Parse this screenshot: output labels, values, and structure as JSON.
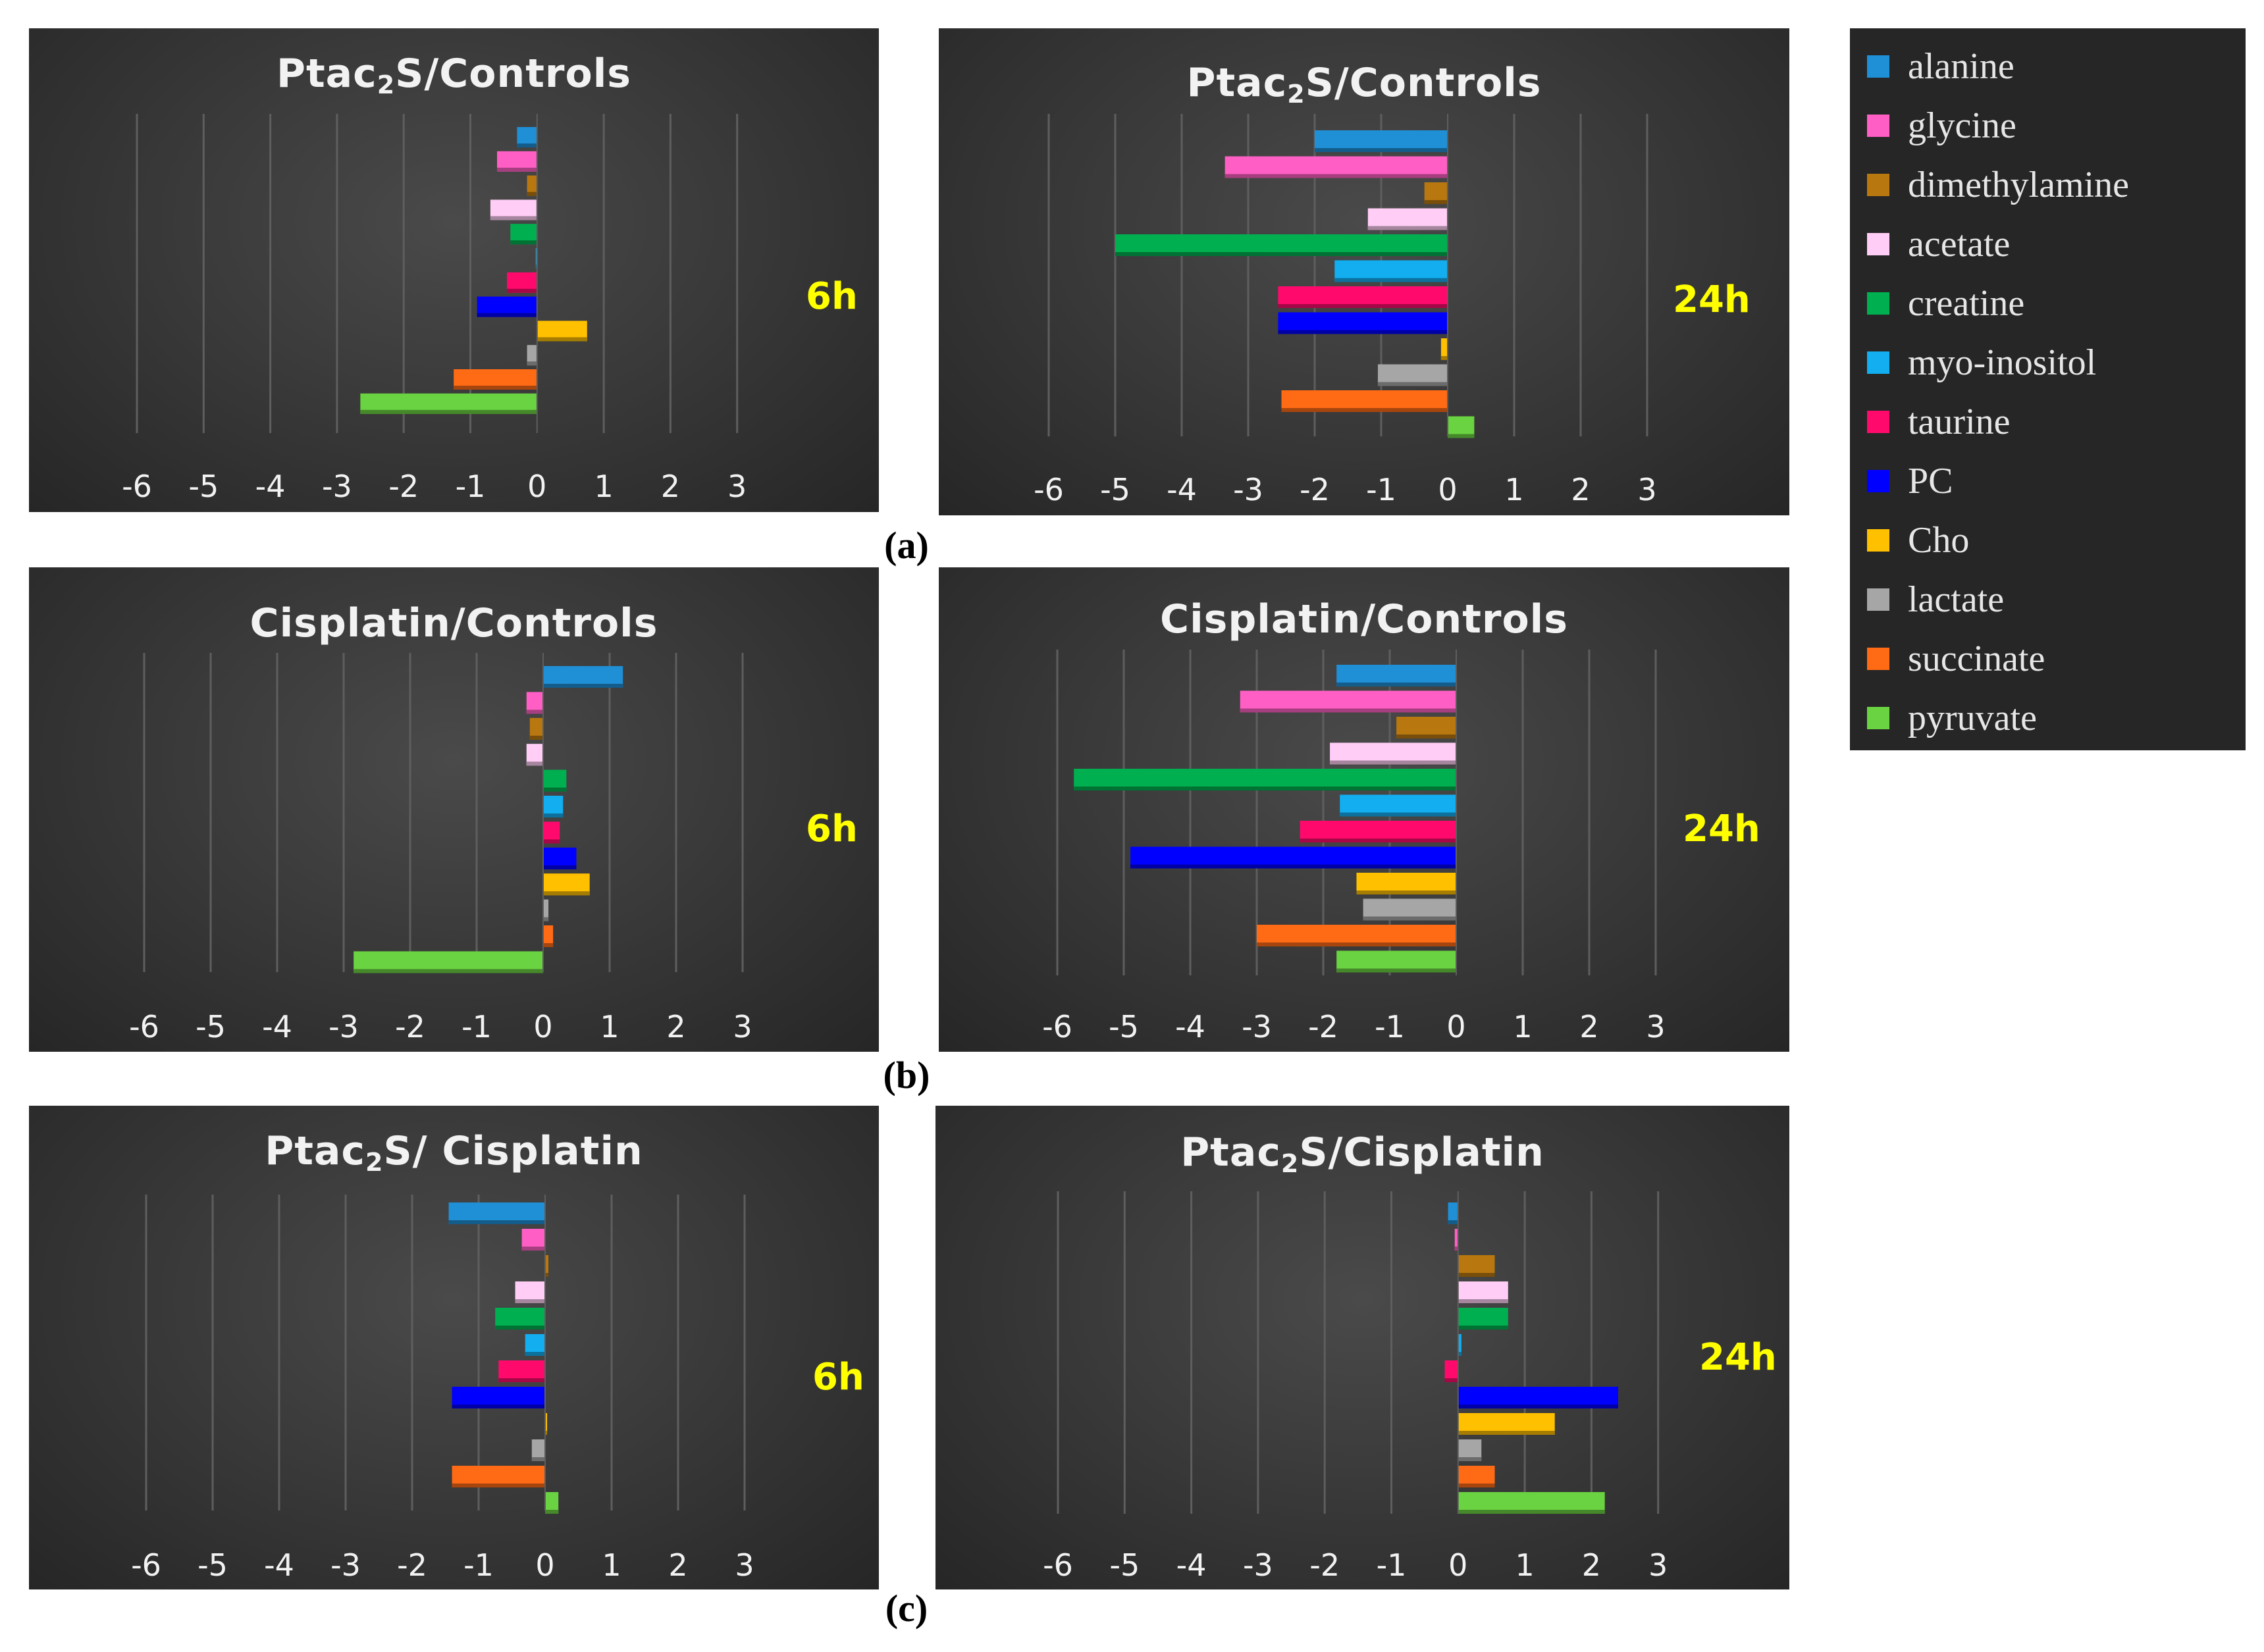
{
  "series": [
    {
      "name": "alanine",
      "color": "#1f8fd6"
    },
    {
      "name": "glycine",
      "color": "#ff5fc4"
    },
    {
      "name": "dimethylamine",
      "color": "#b8780f"
    },
    {
      "name": "acetate",
      "color": "#ffcdf5"
    },
    {
      "name": "creatine",
      "color": "#00b050"
    },
    {
      "name": "myo-inositol",
      "color": "#12aef0"
    },
    {
      "name": "taurine",
      "color": "#ff0a6c"
    },
    {
      "name": "PC",
      "color": "#0000ff"
    },
    {
      "name": "Cho",
      "color": "#ffc000"
    },
    {
      "name": "lactate",
      "color": "#a6a6a6"
    },
    {
      "name": "succinate",
      "color": "#ff6a14"
    },
    {
      "name": "pyruvate",
      "color": "#6ad341"
    }
  ],
  "chart_data": [
    {
      "type": "bar",
      "title_main": "Ptac",
      "title_sub": "2",
      "title_rest": "S/Controls",
      "time": "6h",
      "xlim": [
        -6,
        3
      ],
      "ticks": [
        "-6",
        "-5",
        "-4",
        "-3",
        "-2",
        "-1",
        "0",
        "1",
        "2",
        "3"
      ],
      "values": [
        -0.3,
        -0.6,
        -0.15,
        -0.7,
        -0.4,
        -0.02,
        -0.45,
        -0.9,
        0.75,
        -0.15,
        -1.25,
        -2.65
      ]
    },
    {
      "type": "bar",
      "title_main": "Ptac",
      "title_sub": "2",
      "title_rest": "S/Controls",
      "time": "24h",
      "xlim": [
        -6,
        3
      ],
      "ticks": [
        "-6",
        "-5",
        "-4",
        "-3",
        "-2",
        "-1",
        "0",
        "1",
        "2",
        "3"
      ],
      "values": [
        -2.0,
        -3.35,
        -0.35,
        -1.2,
        -5.0,
        -1.7,
        -2.55,
        -2.55,
        -0.1,
        -1.05,
        -2.5,
        0.4
      ]
    },
    {
      "type": "bar",
      "title_main": "Cisplatin/Controls",
      "title_sub": "",
      "title_rest": "",
      "time": "6h",
      "xlim": [
        -6,
        3
      ],
      "ticks": [
        "-6",
        "-5",
        "-4",
        "-3",
        "-2",
        "-1",
        "0",
        "1",
        "2",
        "3"
      ],
      "values": [
        1.2,
        -0.25,
        -0.2,
        -0.25,
        0.35,
        0.3,
        0.25,
        0.5,
        0.7,
        0.08,
        0.15,
        -2.85
      ]
    },
    {
      "type": "bar",
      "title_main": "Cisplatin/Controls",
      "title_sub": "",
      "title_rest": "",
      "time": "24h",
      "xlim": [
        -6,
        3
      ],
      "ticks": [
        "-6",
        "-5",
        "-4",
        "-3",
        "-2",
        "-1",
        "0",
        "1",
        "2",
        "3"
      ],
      "values": [
        -1.8,
        -3.25,
        -0.9,
        -1.9,
        -5.75,
        -1.75,
        -2.35,
        -4.9,
        -1.5,
        -1.4,
        -3.0,
        -1.8
      ]
    },
    {
      "type": "bar",
      "title_main": "Ptac",
      "title_sub": "2",
      "title_rest": "S/ Cisplatin",
      "time": "6h",
      "xlim": [
        -6,
        3
      ],
      "ticks": [
        "-6",
        "-5",
        "-4",
        "-3",
        "-2",
        "-1",
        "0",
        "1",
        "2",
        "3"
      ],
      "values": [
        -1.45,
        -0.35,
        0.05,
        -0.45,
        -0.75,
        -0.3,
        -0.7,
        -1.4,
        0.03,
        -0.2,
        -1.4,
        0.2
      ]
    },
    {
      "type": "bar",
      "title_main": "Ptac",
      "title_sub": "2",
      "title_rest": "S/Cisplatin",
      "time": "24h",
      "xlim": [
        -6,
        3
      ],
      "ticks": [
        "-6",
        "-5",
        "-4",
        "-3",
        "-2",
        "-1",
        "0",
        "1",
        "2",
        "3"
      ],
      "values": [
        -0.15,
        -0.05,
        0.55,
        0.75,
        0.75,
        0.05,
        -0.2,
        2.4,
        1.45,
        0.35,
        0.55,
        2.2
      ]
    }
  ],
  "panel_labels": [
    "(a)",
    "(b)",
    "(c)"
  ]
}
